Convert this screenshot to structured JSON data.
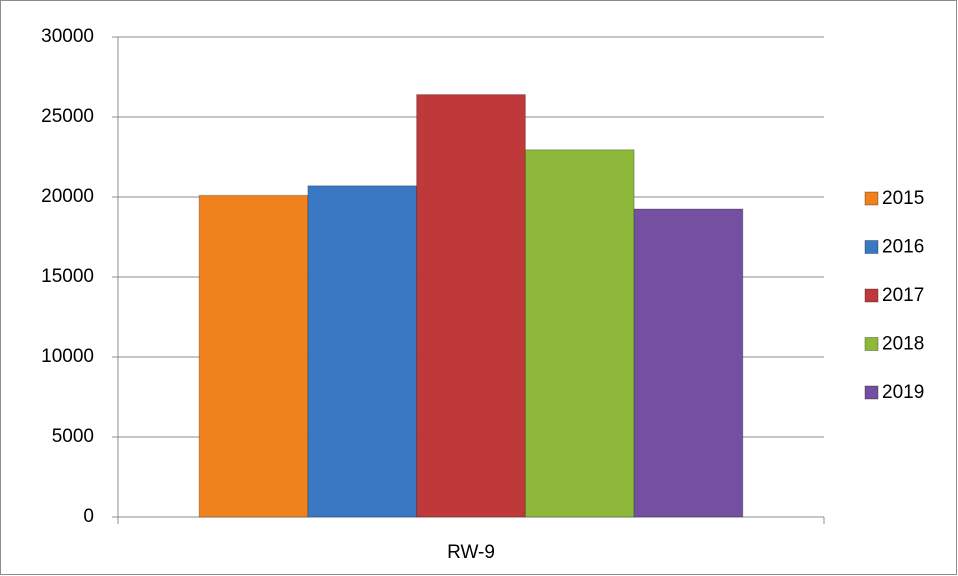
{
  "chart_data": {
    "type": "bar",
    "categories": [
      "RW-9"
    ],
    "series": [
      {
        "name": "2015",
        "color": "#f0821e",
        "values": [
          20100
        ]
      },
      {
        "name": "2016",
        "color": "#3a78c4",
        "values": [
          20700
        ]
      },
      {
        "name": "2017",
        "color": "#c0393a",
        "values": [
          26400
        ]
      },
      {
        "name": "2018",
        "color": "#8db83a",
        "values": [
          22950
        ]
      },
      {
        "name": "2019",
        "color": "#7550a0",
        "values": [
          19250
        ]
      }
    ],
    "ylim": [
      0,
      30000
    ],
    "yticks": [
      0,
      5000,
      10000,
      15000,
      20000,
      25000,
      30000
    ],
    "grid": true,
    "legend": "right"
  }
}
